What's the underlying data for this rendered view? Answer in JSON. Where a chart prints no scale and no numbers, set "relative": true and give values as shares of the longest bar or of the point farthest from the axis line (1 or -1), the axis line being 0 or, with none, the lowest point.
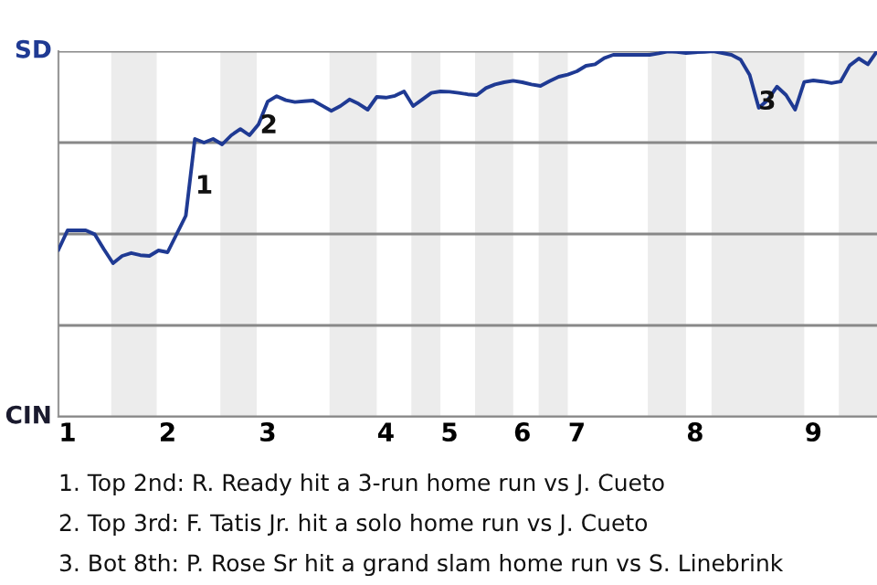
{
  "chart_data": {
    "type": "line",
    "relative": true,
    "categories": [
      null,
      "1",
      null,
      null,
      null,
      null,
      null,
      null,
      null,
      null,
      null,
      null,
      "2",
      null,
      null,
      null,
      null,
      null,
      null,
      null,
      null,
      null,
      null,
      "3",
      null,
      null,
      null,
      null,
      null,
      null,
      null,
      null,
      null,
      null,
      null,
      null,
      "4",
      null,
      null,
      null,
      null,
      null,
      null,
      "5",
      null,
      null,
      null,
      null,
      null,
      null,
      null,
      "6",
      null,
      null,
      null,
      null,
      null,
      "7",
      null,
      null,
      null,
      null,
      null,
      null,
      null,
      null,
      null,
      null,
      null,
      null,
      "8",
      null,
      null,
      null,
      null,
      null,
      null,
      null,
      null,
      null,
      null,
      null,
      null,
      "9",
      null,
      null,
      null,
      null,
      null,
      null,
      null
    ],
    "series": [
      {
        "color": "#1f3a93",
        "values": [
          0.457,
          0.51,
          0.51,
          0.51,
          0.499,
          0.458,
          0.42,
          0.44,
          0.448,
          0.442,
          0.44,
          0.455,
          0.45,
          0.5,
          0.55,
          0.76,
          0.75,
          0.76,
          0.745,
          0.77,
          0.787,
          0.77,
          0.8,
          0.862,
          0.877,
          0.866,
          0.861,
          0.863,
          0.865,
          0.851,
          0.837,
          0.85,
          0.868,
          0.856,
          0.84,
          0.875,
          0.873,
          0.878,
          0.89,
          0.85,
          0.868,
          0.886,
          0.89,
          0.889,
          0.886,
          0.882,
          0.88,
          0.899,
          0.909,
          0.915,
          0.919,
          0.915,
          0.909,
          0.905,
          0.918,
          0.93,
          0.936,
          0.945,
          0.96,
          0.964,
          0.981,
          0.99,
          0.99,
          0.99,
          0.99,
          0.99,
          0.994,
          0.999,
          0.998,
          0.995,
          0.997,
          0.998,
          1.0,
          0.995,
          0.99,
          0.977,
          0.935,
          0.845,
          0.867,
          0.903,
          0.88,
          0.84,
          0.916,
          0.92,
          0.917,
          0.913,
          0.917,
          0.961,
          0.98,
          0.964,
          1.0
        ]
      }
    ],
    "grid": "y",
    "annotations": [
      "SD",
      "CIN",
      "1",
      "2",
      "3",
      "1. Top 2nd: R. Ready hit a 3-run home run vs J. Cueto",
      "2. Top 3rd: F. Tatis Jr. hit a solo home run vs J. Cueto",
      "3. Bot 8th: P. Rose Sr hit a grand slam home run vs S. Linebrink"
    ],
    "marker": "none",
    "line_style": "solid"
  }
}
